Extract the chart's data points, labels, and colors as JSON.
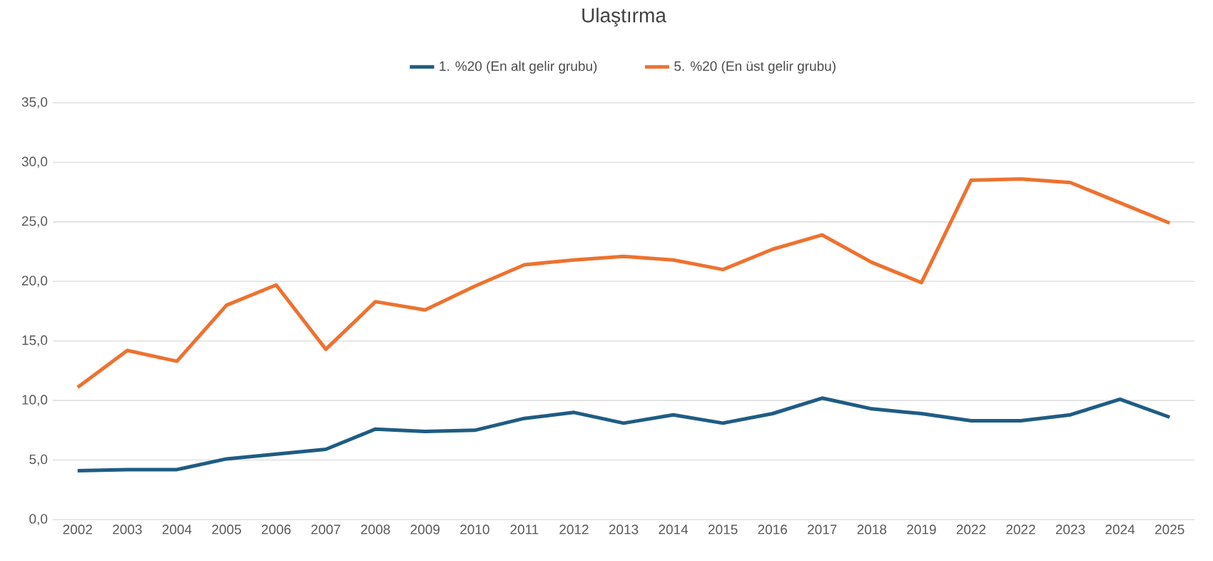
{
  "chart_data": {
    "type": "line",
    "title": "Ulaştırma",
    "categories": [
      "2002",
      "2003",
      "2004",
      "2005",
      "2006",
      "2007",
      "2008",
      "2009",
      "2010",
      "2011",
      "2012",
      "2013",
      "2014",
      "2015",
      "2016",
      "2017",
      "2018",
      "2019",
      "2022",
      "2022",
      "2023",
      "2024",
      "2025"
    ],
    "series": [
      {
        "name": "1. %20 (En alt gelir grubu)",
        "color": "#1f5c83",
        "values": [
          4.1,
          4.2,
          4.2,
          5.1,
          5.5,
          5.9,
          7.6,
          7.4,
          7.5,
          8.5,
          9.0,
          8.1,
          8.8,
          8.1,
          8.9,
          10.2,
          9.3,
          8.9,
          8.3,
          8.3,
          8.8,
          10.1,
          8.6
        ]
      },
      {
        "name": "5. %20 (En üst gelir grubu)",
        "color": "#ed7230",
        "values": [
          11.1,
          14.2,
          13.3,
          18.0,
          19.7,
          14.3,
          18.3,
          17.6,
          19.6,
          21.4,
          21.8,
          22.1,
          21.8,
          21.0,
          22.7,
          23.9,
          21.6,
          19.9,
          28.5,
          28.6,
          28.3,
          26.6,
          24.9
        ]
      }
    ],
    "ylim": [
      0,
      35
    ],
    "yticks": [
      {
        "value": 0,
        "label": "0,0"
      },
      {
        "value": 5,
        "label": "5,0"
      },
      {
        "value": 10,
        "label": "10,0"
      },
      {
        "value": 15,
        "label": "15,0"
      },
      {
        "value": 20,
        "label": "20,0"
      },
      {
        "value": 25,
        "label": "25,0"
      },
      {
        "value": 30,
        "label": "30,0"
      },
      {
        "value": 35,
        "label": "35,0"
      }
    ],
    "grid": "y",
    "legend": "top",
    "marker": "none",
    "line_style": "solid"
  }
}
